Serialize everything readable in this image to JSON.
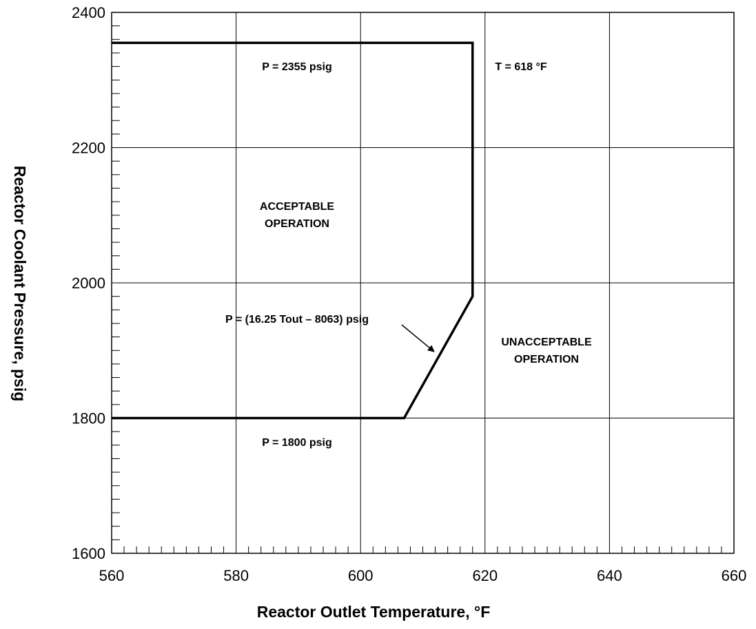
{
  "chart_data": {
    "type": "line",
    "title": "",
    "xlabel": "Reactor Outlet Temperature, °F",
    "ylabel": "Reactor Coolant Pressure, psig",
    "xlim": [
      560,
      660
    ],
    "ylim": [
      1600,
      2400
    ],
    "x_ticks": [
      "560",
      "580",
      "600",
      "620",
      "640",
      "660"
    ],
    "y_ticks": [
      "1600",
      "1800",
      "2000",
      "2200",
      "2400"
    ],
    "x_minor_step": 2,
    "y_minor_step": 20,
    "grid": true,
    "series": [
      {
        "x": [
          560,
          607,
          618,
          618,
          560
        ],
        "y": [
          1800,
          1800,
          1980,
          2355,
          2355
        ]
      }
    ],
    "annotations": {
      "upper_limit": "P = 2355 psig",
      "temp_limit": "T = 618 °F",
      "acceptable_line1": "ACCEPTABLE",
      "acceptable_line2": "OPERATION",
      "equation": "P = (16.25 Tout – 8063) psig",
      "unacceptable_line1": "UNACCEPTABLE",
      "unacceptable_line2": "OPERATION",
      "lower_limit": "P = 1800 psig"
    }
  }
}
